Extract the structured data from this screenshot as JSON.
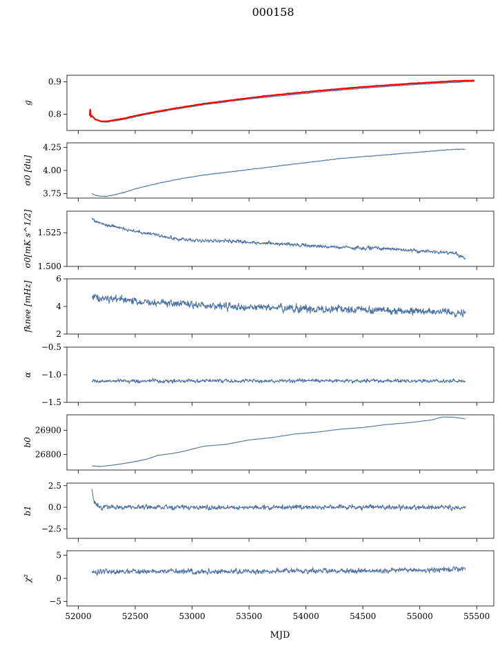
{
  "figure": {
    "title": "000158",
    "xlabel": "MJD"
  },
  "colors": {
    "series": "#4c72a4",
    "model": "#ff0000",
    "axes": "#000000"
  },
  "chart_data": [
    {
      "type": "line",
      "ylabel": "g",
      "xlim": [
        51900,
        55650
      ],
      "ylim": [
        0.75,
        0.92
      ],
      "yticks": [
        0.8,
        0.9
      ],
      "ytick_labels": [
        "0.8",
        "0.9"
      ],
      "grid": false,
      "noise": 0.0015,
      "series": [
        {
          "role": "data",
          "color": "#4c72a4",
          "x": [
            52100,
            52150,
            52200,
            52250,
            52300,
            52400,
            52500,
            52700,
            52900,
            53100,
            53300,
            53500,
            53700,
            53900,
            54100,
            54300,
            54500,
            54700,
            54900,
            55100,
            55300,
            55480
          ],
          "y": [
            0.8,
            0.785,
            0.777,
            0.776,
            0.778,
            0.784,
            0.792,
            0.806,
            0.818,
            0.829,
            0.838,
            0.847,
            0.854,
            0.861,
            0.868,
            0.874,
            0.88,
            0.885,
            0.89,
            0.894,
            0.898,
            0.901
          ]
        },
        {
          "role": "model",
          "color": "#ff0000",
          "x": [
            52100,
            52105,
            52110,
            52120,
            52150,
            52200,
            52250,
            52300,
            52400,
            52500,
            52700,
            52900,
            53100,
            53300,
            53500,
            53700,
            53900,
            54100,
            54300,
            54500,
            54700,
            54900,
            55100,
            55300,
            55480
          ],
          "y": [
            0.795,
            0.82,
            0.79,
            0.795,
            0.784,
            0.778,
            0.778,
            0.781,
            0.787,
            0.795,
            0.809,
            0.821,
            0.832,
            0.841,
            0.85,
            0.858,
            0.865,
            0.872,
            0.878,
            0.884,
            0.889,
            0.894,
            0.898,
            0.902,
            0.904
          ]
        }
      ]
    },
    {
      "type": "line",
      "ylabel": "σ0 [du]",
      "xlim": [
        51900,
        55650
      ],
      "ylim": [
        3.7,
        4.3
      ],
      "yticks": [
        3.75,
        4.0,
        4.25
      ],
      "ytick_labels": [
        "3.75",
        "4.00",
        "4.25"
      ],
      "grid": false,
      "noise": 0.004,
      "series": [
        {
          "role": "data",
          "color": "#4c72a4",
          "x": [
            52120,
            52150,
            52200,
            52250,
            52300,
            52400,
            52500,
            52700,
            52900,
            53100,
            53300,
            53500,
            53700,
            53900,
            54100,
            54300,
            54500,
            54700,
            54900,
            55100,
            55300,
            55400
          ],
          "y": [
            3.75,
            3.73,
            3.72,
            3.72,
            3.73,
            3.76,
            3.8,
            3.86,
            3.91,
            3.95,
            3.98,
            4.01,
            4.04,
            4.07,
            4.1,
            4.13,
            4.15,
            4.17,
            4.19,
            4.21,
            4.23,
            4.23
          ]
        }
      ]
    },
    {
      "type": "line",
      "ylabel": "σ0[mK s^1/2]",
      "xlim": [
        51900,
        55650
      ],
      "ylim": [
        1.5,
        1.541
      ],
      "yticks": [
        1.5,
        1.525
      ],
      "ytick_labels": [
        "1.500",
        "1.525"
      ],
      "grid": false,
      "noise": 0.0018,
      "series": [
        {
          "role": "data",
          "color": "#4c72a4",
          "x": [
            52120,
            52200,
            52300,
            52500,
            52700,
            52900,
            53100,
            53300,
            53500,
            53700,
            53900,
            54100,
            54300,
            54500,
            54700,
            54900,
            55100,
            55300,
            55400
          ],
          "y": [
            1.535,
            1.532,
            1.53,
            1.526,
            1.523,
            1.52,
            1.519,
            1.519,
            1.518,
            1.517,
            1.516,
            1.515,
            1.514,
            1.514,
            1.513,
            1.512,
            1.511,
            1.51,
            1.506
          ]
        }
      ]
    },
    {
      "type": "line",
      "ylabel": "fknee [mHz]",
      "xlim": [
        51900,
        55650
      ],
      "ylim": [
        2,
        6
      ],
      "yticks": [
        2,
        4,
        6
      ],
      "ytick_labels": [
        "2",
        "4",
        "6"
      ],
      "grid": false,
      "noise": 0.38,
      "series": [
        {
          "role": "data",
          "color": "#4c72a4",
          "x": [
            52120,
            52300,
            52500,
            52700,
            52900,
            53100,
            53300,
            53500,
            53700,
            53900,
            54100,
            54300,
            54500,
            54700,
            54900,
            55100,
            55300,
            55400
          ],
          "y": [
            4.7,
            4.5,
            4.4,
            4.3,
            4.2,
            4.1,
            4.0,
            3.95,
            3.9,
            3.85,
            3.8,
            3.8,
            3.75,
            3.7,
            3.65,
            3.6,
            3.55,
            3.5
          ]
        }
      ]
    },
    {
      "type": "line",
      "ylabel": "α",
      "xlim": [
        51900,
        55650
      ],
      "ylim": [
        -1.5,
        -0.5
      ],
      "yticks": [
        -1.5,
        -1.0,
        -0.5
      ],
      "ytick_labels": [
        "−1.5",
        "−1.0",
        "−0.5"
      ],
      "grid": false,
      "noise": 0.045,
      "series": [
        {
          "role": "data",
          "color": "#4c72a4",
          "x": [
            52120,
            52500,
            53000,
            53500,
            54000,
            54500,
            55000,
            55400
          ],
          "y": [
            -1.12,
            -1.11,
            -1.11,
            -1.11,
            -1.11,
            -1.11,
            -1.11,
            -1.11
          ]
        }
      ]
    },
    {
      "type": "line",
      "ylabel": "b0",
      "xlim": [
        51900,
        55650
      ],
      "ylim": [
        26735,
        26965
      ],
      "yticks": [
        26800,
        26900
      ],
      "ytick_labels": [
        "26800",
        "26900"
      ],
      "grid": false,
      "noise": 0.8,
      "series": [
        {
          "role": "data",
          "color": "#4c72a4",
          "x": [
            52120,
            52200,
            52300,
            52400,
            52500,
            52600,
            52700,
            52800,
            52900,
            53000,
            53100,
            53300,
            53500,
            53700,
            53900,
            54100,
            54300,
            54500,
            54700,
            54900,
            55100,
            55200,
            55300,
            55400
          ],
          "y": [
            26752,
            26750,
            26755,
            26762,
            26770,
            26780,
            26796,
            26802,
            26810,
            26822,
            26834,
            26842,
            26860,
            26870,
            26885,
            26893,
            26905,
            26912,
            26924,
            26932,
            26943,
            26956,
            26955,
            26948
          ]
        }
      ]
    },
    {
      "type": "line",
      "ylabel": "b1",
      "xlim": [
        51900,
        55650
      ],
      "ylim": [
        -3.6,
        2.8
      ],
      "yticks": [
        -2.5,
        0.0,
        2.5
      ],
      "ytick_labels": [
        "−2.5",
        "0.0",
        "2.5"
      ],
      "grid": false,
      "noise": 0.38,
      "series": [
        {
          "role": "data",
          "color": "#4c72a4",
          "x": [
            52120,
            52130,
            52160,
            52200,
            52500,
            53000,
            53500,
            54000,
            54500,
            55000,
            55400
          ],
          "y": [
            2.0,
            1.0,
            0.3,
            0.0,
            0.0,
            0.0,
            0.0,
            0.0,
            0.0,
            0.0,
            0.0
          ]
        }
      ]
    },
    {
      "type": "line",
      "ylabel": "χ²",
      "xlim": [
        51900,
        55650
      ],
      "ylim": [
        -6,
        6
      ],
      "yticks": [
        -5,
        0,
        5
      ],
      "ytick_labels": [
        "−5",
        "0",
        "5"
      ],
      "grid": false,
      "noise": 0.75,
      "series": [
        {
          "role": "data",
          "color": "#4c72a4",
          "x": [
            52120,
            52500,
            53000,
            53500,
            54000,
            54500,
            55000,
            55400
          ],
          "y": [
            1.4,
            1.5,
            1.5,
            1.5,
            1.6,
            1.7,
            1.8,
            2.0
          ]
        }
      ]
    }
  ],
  "xaxis": {
    "ticks": [
      52000,
      52500,
      53000,
      53500,
      54000,
      54500,
      55000,
      55500
    ],
    "tick_labels": [
      "52000",
      "52500",
      "53000",
      "53500",
      "54000",
      "54500",
      "55000",
      "55500"
    ]
  }
}
